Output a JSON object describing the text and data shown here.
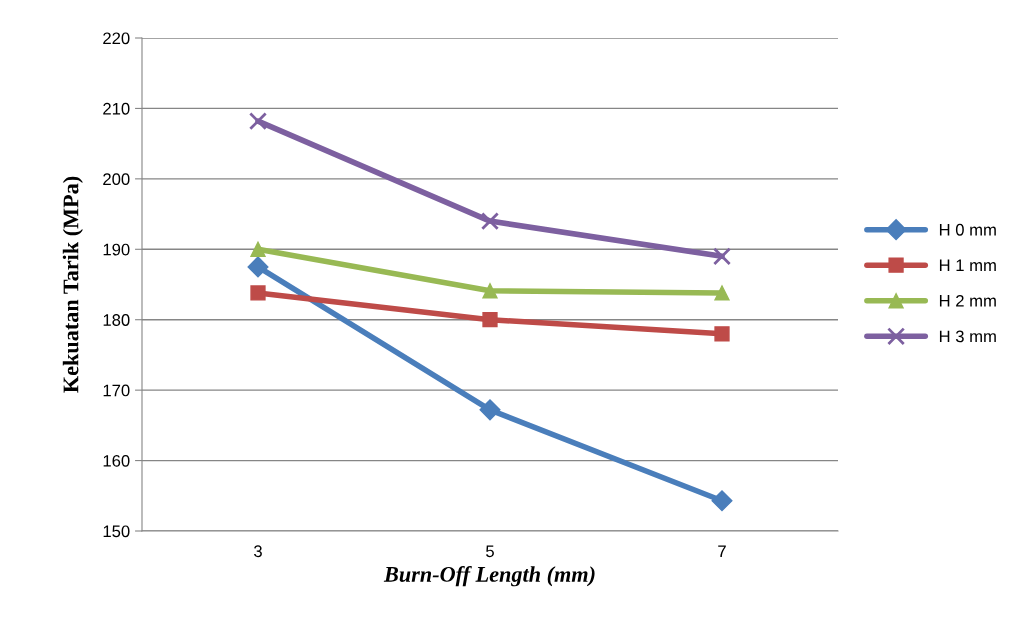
{
  "chart_data": {
    "type": "line",
    "xlabel": "Burn-Off Length (mm)",
    "ylabel": "Kekuatan Tarik (MPa)",
    "categories": [
      "3",
      "5",
      "7"
    ],
    "series": [
      {
        "name": "H 0 mm",
        "color": "#4a7ebb",
        "marker": "diamond",
        "values": [
          187.5,
          167.2,
          154.3
        ]
      },
      {
        "name": "H 1 mm",
        "color": "#be4b48",
        "marker": "square",
        "values": [
          183.8,
          180,
          178
        ]
      },
      {
        "name": "H 2 mm",
        "color": "#98b954",
        "marker": "triangle",
        "values": [
          190,
          184.1,
          183.8
        ]
      },
      {
        "name": "H 3 mm",
        "color": "#7d60a0",
        "marker": "cross",
        "values": [
          208.2,
          194,
          189
        ]
      }
    ],
    "ylim": [
      150,
      220
    ],
    "yticks": [
      150,
      160,
      170,
      180,
      190,
      200,
      210,
      220
    ],
    "grid": "y",
    "legend": "right",
    "line_style": "solid"
  }
}
